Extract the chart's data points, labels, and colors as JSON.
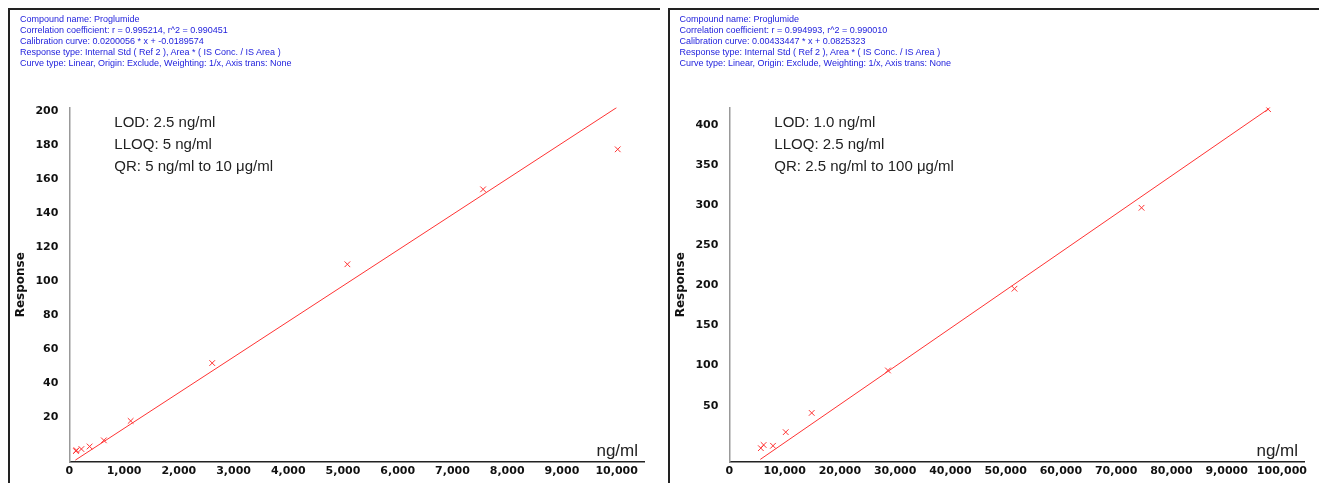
{
  "chart_data": [
    {
      "type": "scatter",
      "title": "Compound name: Proglumide",
      "subtitle": "Correlation coefficient: r = 0.995214, r^2 = 0.990451",
      "annotations": [
        "Calibration curve: 0.0200056 * x + -0.0189574",
        "Response type: Internal Std ( Ref 2 ), Area * ( IS Conc. / IS Area )",
        "Curve type: Linear, Origin: Exclude, Weighting: 1/x, Axis trans: None",
        "LOD: 2.5 ng/ml",
        "LLOQ: 5 ng/ml",
        "QR: 5 ng/ml to 10 μg/ml"
      ],
      "xlabel": "ng/ml",
      "ylabel": "Response",
      "series": [
        {
          "color": "#ff3333",
          "marker": "cross",
          "x": [
            120,
            130,
            220,
            370,
            630,
            1120,
            2610,
            5080,
            7560,
            10020
          ],
          "values": [
            0.3,
            0.8,
            1.5,
            3,
            6.6,
            18,
            52,
            110,
            154,
            177.5
          ]
        },
        {
          "type": "line",
          "color": "#ff3333",
          "marker": "none",
          "x": [
            110,
            10000
          ],
          "values": [
            -5,
            202
          ]
        }
      ],
      "xlim": [
        0,
        10500
      ],
      "ylim": [
        -6,
        202
      ],
      "xticks": [
        0,
        {
          "value": 1000,
          "label": "1,000"
        },
        {
          "value": 2000,
          "label": "2,000"
        },
        {
          "value": 3000,
          "label": "3,000"
        },
        {
          "value": 4000,
          "label": "4,000"
        },
        {
          "value": 5000,
          "label": "5,000"
        },
        {
          "value": 6000,
          "label": "6,000"
        },
        {
          "value": 7000,
          "label": "7,000"
        },
        {
          "value": 8000,
          "label": "8,000"
        },
        {
          "value": 9000,
          "label": "9,000"
        },
        {
          "value": 10000,
          "label": "10,000"
        }
      ],
      "yticks": [
        20,
        40,
        60,
        80,
        100,
        120,
        140,
        160,
        180,
        200
      ],
      "grid": false,
      "legend": false
    },
    {
      "type": "scatter",
      "title": "Compound name: Proglumide",
      "subtitle": "Correlation coefficient: r = 0.994993, r^2 = 0.990010",
      "annotations": [
        "Calibration curve: 0.00433447 * x + 0.0825323",
        "Response type: Internal Std ( Ref 2 ), Area * ( IS Conc. / IS Area )",
        "Curve type: Linear, Origin: Exclude, Weighting: 1/x, Axis trans: None",
        "LOD: 1.0 ng/ml",
        "LLOQ: 2.5 ng/ml",
        "QR: 2.5 ng/ml to 100 μg/ml"
      ],
      "xlabel": "ng/ml",
      "ylabel": "Response",
      "series": [
        {
          "color": "#ff3333",
          "marker": "cross",
          "x": [
            5700,
            6200,
            7900,
            10200,
            14900,
            28700,
            51600,
            74600,
            97500
          ],
          "values": [
            -3,
            1,
            0,
            17,
            41,
            94,
            196,
            297,
            420
          ]
        },
        {
          "type": "line",
          "color": "#ff3333",
          "marker": "none",
          "x": [
            5600,
            97500
          ],
          "values": [
            -17,
            420
          ]
        }
      ],
      "xlim": [
        0,
        104000
      ],
      "ylim": [
        -20,
        422
      ],
      "xticks": [
        0,
        {
          "value": 10000,
          "label": "10,000"
        },
        {
          "value": 20000,
          "label": "20,000"
        },
        {
          "value": 30000,
          "label": "30,000"
        },
        {
          "value": 40000,
          "label": "40,000"
        },
        {
          "value": 50000,
          "label": "50,000"
        },
        {
          "value": 60000,
          "label": "60,000"
        },
        {
          "value": 70000,
          "label": "70,000"
        },
        {
          "value": 80000,
          "label": "80,000"
        },
        {
          "value": 90000,
          "label": "9,0000"
        },
        {
          "value": 100000,
          "label": "100,000"
        }
      ],
      "yticks": [
        50,
        100,
        150,
        200,
        250,
        300,
        350,
        400
      ],
      "grid": false,
      "legend": false
    }
  ]
}
